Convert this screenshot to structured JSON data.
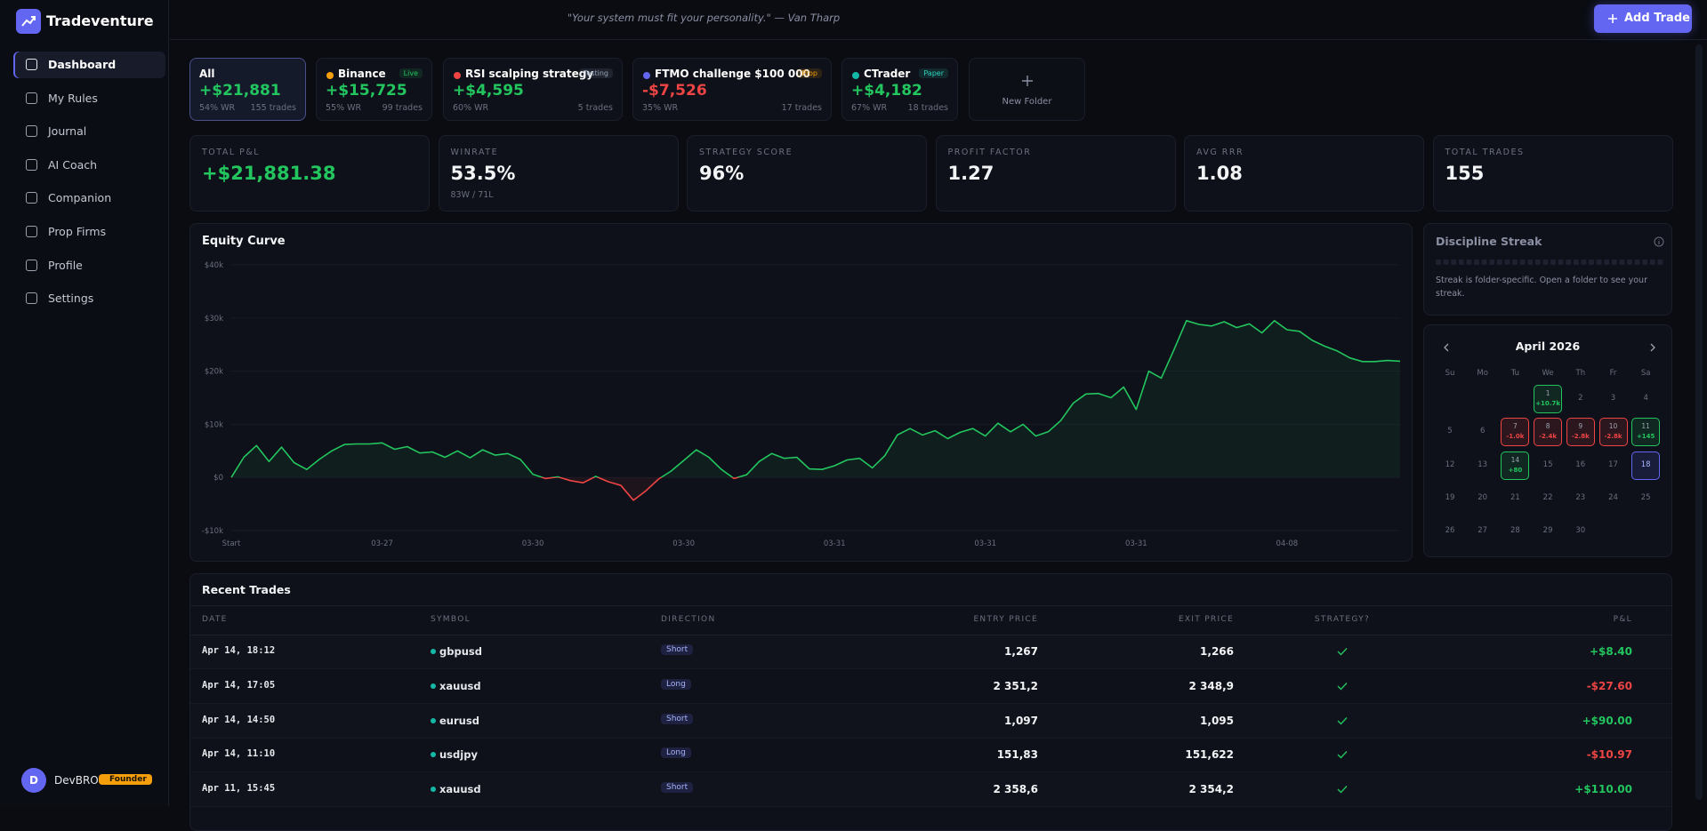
{
  "sidebar": {
    "brand": "Tradeventure",
    "nav": [
      "Dashboard",
      "My Rules",
      "Journal",
      "AI Coach",
      "Companion",
      "Prop Firms",
      "Profile",
      "Settings"
    ]
  },
  "user": {
    "initial": "D",
    "name": "DevBRO",
    "badge": "Founder"
  },
  "header": {
    "quote": "\"Your system must fit your personality.\" — Van Tharp",
    "button": "Add Trade"
  },
  "folders": [
    {
      "name": "All",
      "pnl": "+$21,881",
      "winrate": "54% WR",
      "trades": "155 trades"
    },
    {
      "name": "Binance",
      "badge": "Live",
      "color": "#f59e0b",
      "badge_color": "#22c55e",
      "pnl": "+$15,725",
      "winrate": "55% WR",
      "trades": "99 trades"
    },
    {
      "name": "RSI scalping strategy",
      "badge": "Testing",
      "color": "#ef4444",
      "badge_color": "#94a3b8",
      "pnl": "+$4,595",
      "winrate": "60% WR",
      "trades": "5 trades"
    },
    {
      "name": "FTMO challenge $100 000",
      "badge": "Prop",
      "color": "#6366f1",
      "badge_color": "#f59e0b",
      "pnl": "-$7,526",
      "winrate": "35% WR",
      "trades": "17 trades"
    },
    {
      "name": "CTrader",
      "badge": "Paper",
      "color": "#14b8a6",
      "badge_color": "#2dd4bf",
      "pnl": "+$4,182",
      "winrate": "67% WR",
      "trades": "18 trades"
    }
  ],
  "new_folder": "New Folder",
  "stats": [
    {
      "label": "TOTAL P&L",
      "value": "+$21,881.38"
    },
    {
      "label": "WINRATE",
      "value": "53.5%",
      "sub": "83W / 71L"
    },
    {
      "label": "STRATEGY SCORE",
      "value": "96%"
    },
    {
      "label": "PROFIT FACTOR",
      "value": "1.27"
    },
    {
      "label": "AVG RRR",
      "value": "1.08"
    },
    {
      "label": "TOTAL TRADES",
      "value": "155"
    }
  ],
  "chart_data": {
    "type": "line",
    "title": "Equity Curve",
    "categories": [
      "Start",
      null,
      null,
      null,
      null,
      null,
      null,
      null,
      null,
      null,
      null,
      null,
      "03-27",
      null,
      null,
      null,
      null,
      null,
      null,
      null,
      null,
      null,
      null,
      null,
      "03-30",
      null,
      null,
      null,
      null,
      null,
      null,
      null,
      null,
      null,
      null,
      null,
      "03-30",
      null,
      null,
      null,
      null,
      null,
      null,
      null,
      null,
      null,
      null,
      null,
      "03-31",
      null,
      null,
      null,
      null,
      null,
      null,
      null,
      null,
      null,
      null,
      null,
      "03-31",
      null,
      null,
      null,
      null,
      null,
      null,
      null,
      null,
      null,
      null,
      null,
      "03-31",
      null,
      null,
      null,
      null,
      null,
      null,
      null,
      null,
      null,
      null,
      null,
      "04-08",
      null,
      null,
      null,
      null,
      null,
      null,
      null,
      null,
      null
    ],
    "values": [
      0,
      3800,
      6000,
      3000,
      5700,
      2800,
      1500,
      3400,
      5000,
      6200,
      6300,
      6300,
      6500,
      5300,
      5800,
      4600,
      4800,
      3800,
      5000,
      3700,
      5200,
      4200,
      4500,
      3400,
      600,
      -200,
      100,
      -600,
      -1000,
      200,
      -800,
      -1500,
      -4300,
      -2500,
      -300,
      1200,
      3200,
      5200,
      3800,
      1500,
      -200,
      500,
      3000,
      4500,
      3600,
      3800,
      1600,
      1500,
      2200,
      3300,
      3600,
      1800,
      4100,
      8000,
      9200,
      8000,
      8800,
      7300,
      8500,
      9200,
      7800,
      10200,
      8600,
      10000,
      7800,
      8600,
      10700,
      14000,
      15700,
      15800,
      15000,
      17000,
      12800,
      20000,
      18700,
      24000,
      29500,
      28800,
      28500,
      29300,
      28200,
      28900,
      27200,
      29500,
      27800,
      27500,
      25800,
      24700,
      23800,
      22500,
      21800,
      21800,
      22000,
      21881
    ],
    "ylim": [
      -10000,
      40000
    ],
    "yticks": [
      {
        "value": -10000,
        "label": "-$10k"
      },
      {
        "value": 0,
        "label": "$0"
      },
      {
        "value": 10000,
        "label": "$10k"
      },
      {
        "value": 20000,
        "label": "$20k"
      },
      {
        "value": 30000,
        "label": "$30k"
      },
      {
        "value": 40000,
        "label": "$40k"
      }
    ],
    "color": "#22c55e",
    "negative_color": "#ef4444",
    "grid": true
  },
  "discipline": {
    "title": "Discipline Streak",
    "text": "Streak is folder-specific. Open a folder to see your streak."
  },
  "calendar": {
    "month": "April 2026",
    "weekdays": [
      "Su",
      "Mo",
      "Tu",
      "We",
      "Th",
      "Fr",
      "Sa"
    ],
    "days": [
      {
        "day": 1,
        "pnl": "+10.7k"
      },
      {
        "day": 2
      },
      {
        "day": 3
      },
      {
        "day": 4
      },
      {
        "day": 5
      },
      {
        "day": 6
      },
      {
        "day": 7,
        "pnl": "-1.0k"
      },
      {
        "day": 8,
        "pnl": "-2.4k"
      },
      {
        "day": 9,
        "pnl": "-2.8k"
      },
      {
        "day": 10,
        "pnl": "-2.8k"
      },
      {
        "day": 11,
        "pnl": "+145"
      },
      {
        "day": 12
      },
      {
        "day": 13
      },
      {
        "day": 14,
        "pnl": "+80"
      },
      {
        "day": 15
      },
      {
        "day": 16
      },
      {
        "day": 17
      },
      {
        "day": 18,
        "today": true
      },
      {
        "day": 19
      },
      {
        "day": 20
      },
      {
        "day": 21
      },
      {
        "day": 22
      },
      {
        "day": 23
      },
      {
        "day": 24
      },
      {
        "day": 25
      },
      {
        "day": 26
      },
      {
        "day": 27
      },
      {
        "day": 28
      },
      {
        "day": 29
      },
      {
        "day": 30
      }
    ]
  },
  "recent_trades": {
    "title": "Recent Trades",
    "columns": [
      "DATE",
      "SYMBOL",
      "DIRECTION",
      "ENTRY PRICE",
      "EXIT PRICE",
      "STRATEGY?",
      "P&L"
    ],
    "rows": [
      {
        "date": "Apr 14, 18:12",
        "symbol": "gbpusd",
        "direction": "Short",
        "entry": "1,267",
        "exit": "1,266",
        "pnl": "+$8.40"
      },
      {
        "date": "Apr 14, 17:05",
        "symbol": "xauusd",
        "direction": "Long",
        "entry": "2 351,2",
        "exit": "2 348,9",
        "pnl": "-$27.60"
      },
      {
        "date": "Apr 14, 14:50",
        "symbol": "eurusd",
        "direction": "Short",
        "entry": "1,097",
        "exit": "1,095",
        "pnl": "+$90.00"
      },
      {
        "date": "Apr 14, 11:10",
        "symbol": "usdjpy",
        "direction": "Long",
        "entry": "151,83",
        "exit": "151,622",
        "pnl": "-$10.97"
      },
      {
        "date": "Apr 11, 15:45",
        "symbol": "xauusd",
        "direction": "Short",
        "entry": "2 358,6",
        "exit": "2 354,2",
        "pnl": "+$110.00"
      }
    ]
  }
}
